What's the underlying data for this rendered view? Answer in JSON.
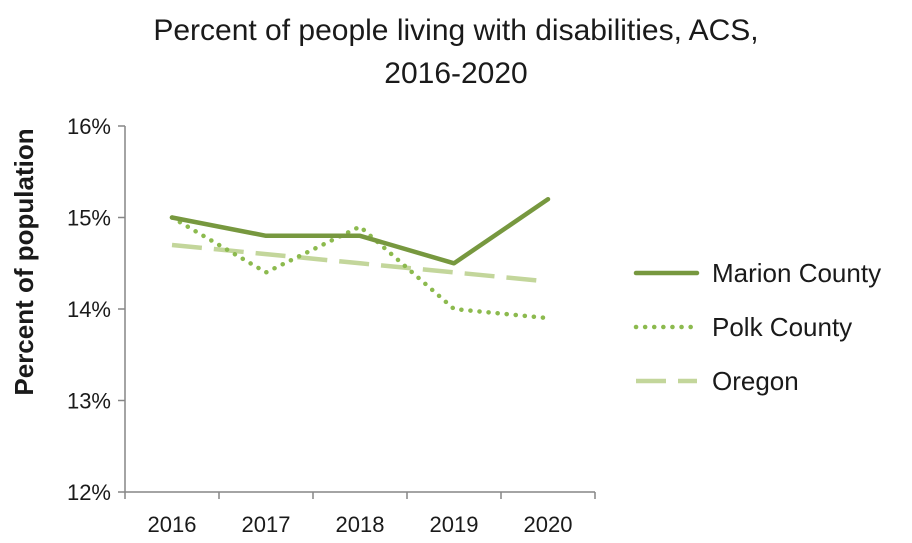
{
  "chart_data": {
    "type": "line",
    "title_lines": [
      "Percent of people living with disabilities, ACS,",
      "2016-2020"
    ],
    "xlabel": "",
    "ylabel": "Percent of population",
    "categories": [
      "2016",
      "2017",
      "2018",
      "2019",
      "2020"
    ],
    "y_ticks": [
      12,
      13,
      14,
      15,
      16
    ],
    "y_tick_labels": [
      "12%",
      "13%",
      "14%",
      "15%",
      "16%"
    ],
    "ylim": [
      12,
      16
    ],
    "grid": false,
    "legend_position": "right",
    "series": [
      {
        "name": "Marion County",
        "values": [
          15.0,
          14.8,
          14.8,
          14.5,
          15.2
        ],
        "color": "#77983f",
        "style": "solid"
      },
      {
        "name": "Polk County",
        "values": [
          15.0,
          14.4,
          14.9,
          14.0,
          13.9
        ],
        "color": "#8cba4e",
        "style": "dotted"
      },
      {
        "name": "Oregon",
        "values": [
          14.7,
          14.6,
          14.5,
          14.4,
          14.3
        ],
        "color": "#c3d69b",
        "style": "dashed"
      }
    ]
  }
}
